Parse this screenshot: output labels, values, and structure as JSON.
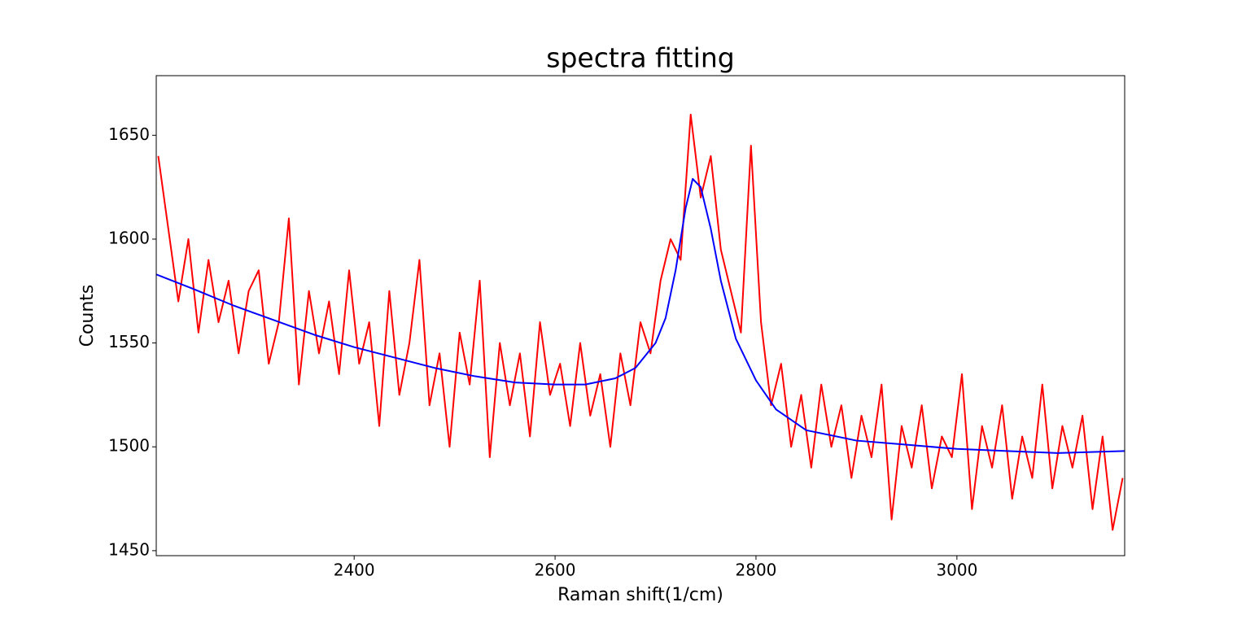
{
  "chart_data": {
    "type": "line",
    "title": "spectra fitting",
    "xlabel": "Raman shift(1/cm)",
    "ylabel": "Counts",
    "xlim": [
      2203,
      3167
    ],
    "ylim": [
      1447.6,
      1678.7
    ],
    "xticks": [
      2400,
      2600,
      2800,
      3000
    ],
    "yticks": [
      1450,
      1500,
      1550,
      1600,
      1650
    ],
    "grid": false,
    "series": [
      {
        "color": "#ff0000",
        "x": [
          2205,
          2215,
          2225,
          2235,
          2245,
          2255,
          2265,
          2275,
          2285,
          2295,
          2305,
          2315,
          2325,
          2335,
          2345,
          2355,
          2365,
          2375,
          2385,
          2395,
          2405,
          2415,
          2425,
          2435,
          2445,
          2455,
          2465,
          2475,
          2485,
          2495,
          2505,
          2515,
          2525,
          2535,
          2545,
          2555,
          2565,
          2575,
          2585,
          2595,
          2605,
          2615,
          2625,
          2635,
          2645,
          2655,
          2665,
          2675,
          2685,
          2695,
          2705,
          2715,
          2725,
          2735,
          2745,
          2755,
          2765,
          2775,
          2785,
          2795,
          2805,
          2815,
          2825,
          2835,
          2845,
          2855,
          2865,
          2875,
          2885,
          2895,
          2905,
          2915,
          2925,
          2935,
          2945,
          2955,
          2965,
          2975,
          2985,
          2995,
          3005,
          3015,
          3025,
          3035,
          3045,
          3055,
          3065,
          3075,
          3085,
          3095,
          3105,
          3115,
          3125,
          3135,
          3145,
          3155,
          3165
        ],
        "values": [
          1640,
          1605,
          1570,
          1600,
          1555,
          1590,
          1560,
          1580,
          1545,
          1575,
          1585,
          1540,
          1560,
          1610,
          1530,
          1575,
          1545,
          1570,
          1535,
          1585,
          1540,
          1560,
          1510,
          1575,
          1525,
          1550,
          1590,
          1520,
          1545,
          1500,
          1555,
          1530,
          1580,
          1495,
          1550,
          1520,
          1545,
          1505,
          1560,
          1525,
          1540,
          1510,
          1550,
          1515,
          1535,
          1500,
          1545,
          1520,
          1560,
          1545,
          1580,
          1600,
          1590,
          1660,
          1620,
          1640,
          1595,
          1575,
          1555,
          1645,
          1560,
          1520,
          1540,
          1500,
          1525,
          1490,
          1530,
          1500,
          1520,
          1485,
          1515,
          1495,
          1530,
          1465,
          1510,
          1490,
          1520,
          1480,
          1505,
          1495,
          1535,
          1470,
          1510,
          1490,
          1520,
          1475,
          1505,
          1485,
          1530,
          1480,
          1510,
          1490,
          1515,
          1470,
          1505,
          1460,
          1485
        ]
      },
      {
        "color": "#0000ff",
        "x": [
          2203,
          2240,
          2280,
          2320,
          2360,
          2400,
          2440,
          2480,
          2520,
          2560,
          2600,
          2630,
          2660,
          2680,
          2700,
          2710,
          2720,
          2730,
          2737,
          2745,
          2755,
          2765,
          2780,
          2800,
          2820,
          2850,
          2900,
          2950,
          3000,
          3050,
          3100,
          3167
        ],
        "values": [
          1583,
          1576,
          1568,
          1561,
          1554,
          1548,
          1543,
          1538,
          1534,
          1531,
          1530,
          1530,
          1533,
          1538,
          1550,
          1562,
          1585,
          1615,
          1629,
          1625,
          1605,
          1580,
          1552,
          1532,
          1518,
          1508,
          1503,
          1501,
          1499,
          1498,
          1497,
          1498
        ]
      }
    ]
  }
}
